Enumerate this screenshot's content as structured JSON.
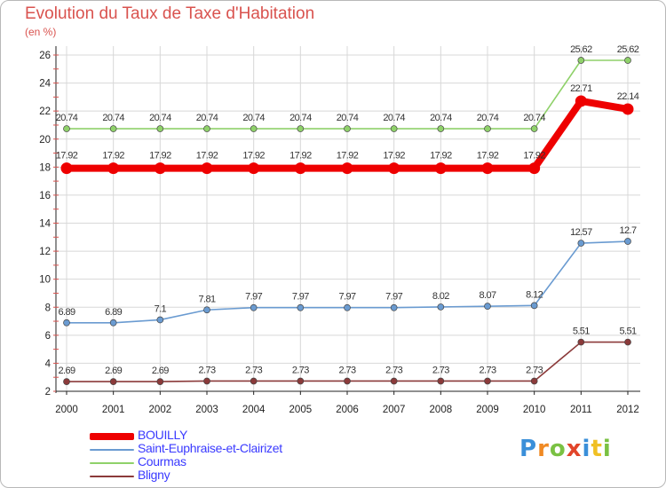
{
  "chart_data": {
    "type": "line",
    "title": "Evolution du Taux de Taxe d'Habitation",
    "subtitle": "(en %)",
    "xlabel": "",
    "ylabel": "(en %)",
    "categories": [
      "2000",
      "2001",
      "2002",
      "2003",
      "2004",
      "2005",
      "2006",
      "2007",
      "2008",
      "2009",
      "2010",
      "2011",
      "2012"
    ],
    "ylim": [
      2,
      26
    ],
    "yticks": [
      2,
      4,
      6,
      8,
      10,
      12,
      14,
      16,
      18,
      20,
      22,
      24,
      26
    ],
    "grid": true,
    "series": [
      {
        "name": "BOUILLY",
        "color": "#ee0000",
        "labels": [
          "17.92",
          "17.92",
          "17.92",
          "17.92",
          "17.92",
          "17.92",
          "17.92",
          "17.92",
          "17.92",
          "17.92",
          "17.92",
          "22.71",
          "22.14"
        ],
        "values": [
          17.92,
          17.92,
          17.92,
          17.92,
          17.92,
          17.92,
          17.92,
          17.92,
          17.92,
          17.92,
          17.92,
          22.71,
          22.14
        ]
      },
      {
        "name": "Saint-Euphraise-et-Clairizet",
        "color": "#6a9bd1",
        "labels": [
          "6.89",
          "6.89",
          "7.1",
          "7.81",
          "7.97",
          "7.97",
          "7.97",
          "7.97",
          "8.02",
          "8.07",
          "8.12",
          "12.57",
          "12.7"
        ],
        "values": [
          6.89,
          6.89,
          7.1,
          7.81,
          7.97,
          7.97,
          7.97,
          7.97,
          8.02,
          8.07,
          8.12,
          12.57,
          12.7
        ]
      },
      {
        "name": "Courmas",
        "color": "#8fd16a",
        "labels": [
          "20.74",
          "20.74",
          "20.74",
          "20.74",
          "20.74",
          "20.74",
          "20.74",
          "20.74",
          "20.74",
          "20.74",
          "20.74",
          "25.62",
          "25.62"
        ],
        "values": [
          20.74,
          20.74,
          20.74,
          20.74,
          20.74,
          20.74,
          20.74,
          20.74,
          20.74,
          20.74,
          20.74,
          25.62,
          25.62
        ]
      },
      {
        "name": "Bligny",
        "color": "#8b3a3a",
        "labels": [
          "2.69",
          "2.69",
          "2.69",
          "2.73",
          "2.73",
          "2.73",
          "2.73",
          "2.73",
          "2.73",
          "2.73",
          "2.73",
          "5.51",
          "5.51"
        ],
        "values": [
          2.69,
          2.69,
          2.69,
          2.73,
          2.73,
          2.73,
          2.73,
          2.73,
          2.73,
          2.73,
          2.73,
          5.51,
          5.51
        ]
      }
    ]
  },
  "logo": {
    "text": "Proxiti"
  }
}
